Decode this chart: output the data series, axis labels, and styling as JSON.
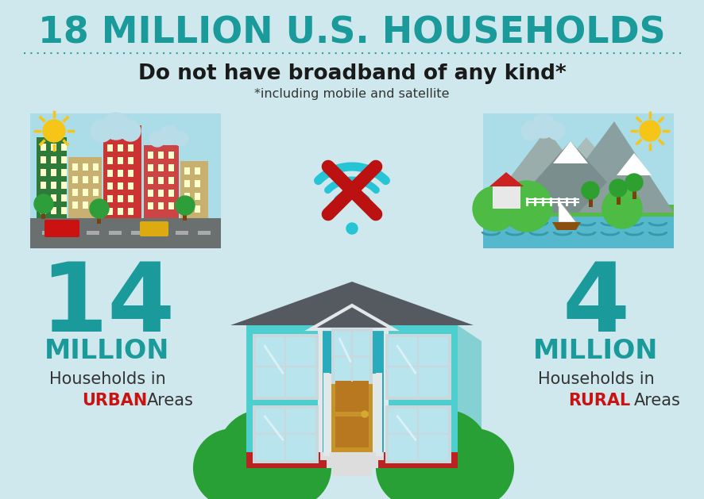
{
  "bg_color": "#cfe8ed",
  "title_text": "18 MILLION U.S. HOUSEHOLDS",
  "title_color": "#1a9a9a",
  "subtitle_text": "Do not have broadband of any kind*",
  "subtitle_color": "#1a1a1a",
  "footnote_text": "*including mobile and satellite",
  "footnote_color": "#333333",
  "dotted_line_color": "#1a9a9a",
  "urban_number": "14",
  "urban_label1": "MILLION",
  "urban_label2": "Households in",
  "urban_label3": "URBAN",
  "urban_label4": "Areas",
  "rural_number": "4",
  "rural_label1": "MILLION",
  "rural_label2": "Households in",
  "rural_label3": "RURAL",
  "rural_label4": "Areas",
  "number_color": "#1a9a9a",
  "million_color": "#1a9a9a",
  "text_color": "#333333",
  "highlight_color": "#cc1111",
  "wifi_color": "#25c5d5",
  "cross_color": "#bb1111",
  "house_main_color": "#4ecfcf",
  "house_roof_color": "#555a60",
  "house_window_color": "#b8e4ee",
  "house_window_border": "#c8d8dc",
  "house_door_color": "#c8922a",
  "house_base_color": "#bb2222",
  "house_tower_color": "#2aabbc",
  "house_trim_color": "#e0e8ea",
  "bush_color": "#28a035",
  "sun_color": "#f5c518",
  "cloud_color": "#b8dce8",
  "city_bg": "#aadde8",
  "rural_bg": "#aadde8",
  "road_color": "#6a7070",
  "water_color": "#55b8cc"
}
